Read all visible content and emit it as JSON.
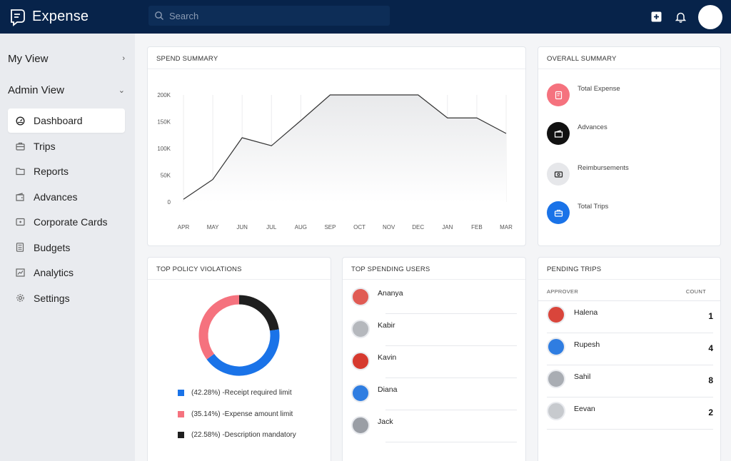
{
  "app": {
    "name": "Expense"
  },
  "search": {
    "placeholder": "Search"
  },
  "sidebar": {
    "my_view": "My View",
    "admin_view": "Admin View",
    "items": [
      {
        "label": "Dashboard",
        "icon": "gauge-icon",
        "active": true
      },
      {
        "label": "Trips",
        "icon": "briefcase-icon"
      },
      {
        "label": "Reports",
        "icon": "folder-icon"
      },
      {
        "label": "Advances",
        "icon": "wallet-icon"
      },
      {
        "label": "Corporate Cards",
        "icon": "card-icon"
      },
      {
        "label": "Budgets",
        "icon": "calculator-icon"
      },
      {
        "label": "Analytics",
        "icon": "chart-icon"
      },
      {
        "label": "Settings",
        "icon": "gear-icon"
      }
    ]
  },
  "spend_summary": {
    "title": "SPEND SUMMARY"
  },
  "chart_data": {
    "type": "area",
    "categories": [
      "APR",
      "MAY",
      "JUN",
      "JUL",
      "AUG",
      "SEP",
      "OCT",
      "NOV",
      "DEC",
      "JAN",
      "FEB",
      "MAR"
    ],
    "values": [
      5000,
      42000,
      120000,
      105000,
      152000,
      200000,
      200000,
      200000,
      200000,
      157000,
      157000,
      128000
    ],
    "y_ticks": [
      "200K",
      "150K",
      "100K",
      "50K",
      "0"
    ],
    "ylim": [
      0,
      200000
    ],
    "grid": "vertical",
    "line_color": "#333333",
    "fill_color": "#e8e9eb"
  },
  "overall_summary": {
    "title": "OVERALL SUMMARY",
    "items": [
      {
        "label": "Total Expense",
        "icon": "receipt-icon",
        "color": "#f5727e"
      },
      {
        "label": "Advances",
        "icon": "wallet-icon",
        "color": "#111111"
      },
      {
        "label": "Reimbursements",
        "icon": "cash-icon",
        "color": "#e6e7ea"
      },
      {
        "label": "Total Trips",
        "icon": "suitcase-icon",
        "color": "#1a73e8"
      }
    ]
  },
  "policy_violations": {
    "title": "TOP POLICY VIOLATIONS",
    "donut": [
      {
        "label": "(42.28%) -Receipt required limit",
        "value": 42.28,
        "color": "#1a73e8"
      },
      {
        "label": "(35.14%) -Expense amount limit",
        "value": 35.14,
        "color": "#f5727e"
      },
      {
        "label": "(22.58%) -Description mandatory",
        "value": 22.58,
        "color": "#1f1f1f"
      }
    ]
  },
  "top_users": {
    "title": "TOP SPENDING USERS",
    "users": [
      {
        "name": "Ananya",
        "color": "#e05b54"
      },
      {
        "name": "Kabir",
        "color": "#b5b8bd"
      },
      {
        "name": "Kavin",
        "color": "#d63a2f"
      },
      {
        "name": "Diana",
        "color": "#2f7de1"
      },
      {
        "name": "Jack",
        "color": "#9a9ea5"
      }
    ]
  },
  "pending_trips": {
    "title": "PENDING TRIPS",
    "col_approver": "APPROVER",
    "col_count": "COUNT",
    "rows": [
      {
        "name": "Halena",
        "count": "1",
        "color": "#d9453b"
      },
      {
        "name": "Rupesh",
        "count": "4",
        "color": "#2f7de1"
      },
      {
        "name": "Sahil",
        "count": "8",
        "color": "#a9adb3"
      },
      {
        "name": "Eevan",
        "count": "2",
        "color": "#c7cace"
      }
    ]
  }
}
